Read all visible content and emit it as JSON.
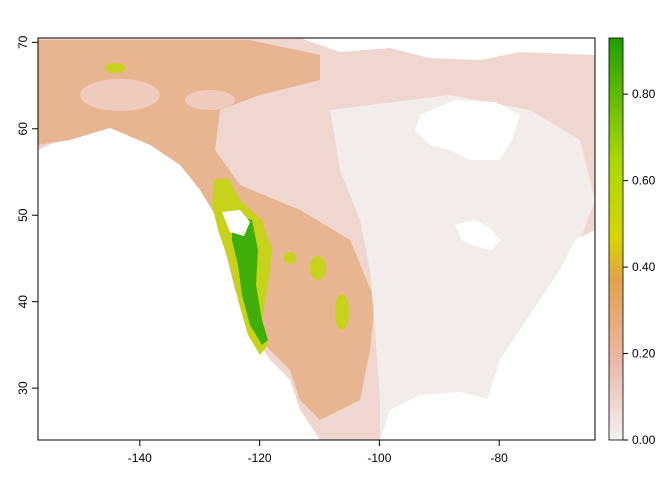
{
  "map": {
    "x_axis": {
      "range": [
        -157,
        -64
      ],
      "ticks": [
        {
          "value": -140,
          "label": "-140"
        },
        {
          "value": -120,
          "label": "-120"
        },
        {
          "value": -100,
          "label": "-100"
        },
        {
          "value": -80,
          "label": "-80"
        }
      ]
    },
    "y_axis": {
      "range": [
        24,
        70.5
      ],
      "ticks": [
        {
          "value": 30,
          "label": "30"
        },
        {
          "value": 40,
          "label": "40"
        },
        {
          "value": 50,
          "label": "50"
        },
        {
          "value": 60,
          "label": "60"
        },
        {
          "value": 70,
          "label": "70"
        }
      ]
    }
  },
  "legend": {
    "range": [
      0,
      0.93
    ],
    "ticks": [
      {
        "value": 0.0,
        "label": "0.00"
      },
      {
        "value": 0.2,
        "label": "0.20"
      },
      {
        "value": 0.4,
        "label": "0.40"
      },
      {
        "value": 0.6,
        "label": "0.60"
      },
      {
        "value": 0.8,
        "label": "0.80"
      }
    ],
    "colors": [
      "#f2f2f2",
      "#ebb6a6",
      "#e3a24a",
      "#d8d400",
      "#a7d900",
      "#1f9e00"
    ]
  }
}
